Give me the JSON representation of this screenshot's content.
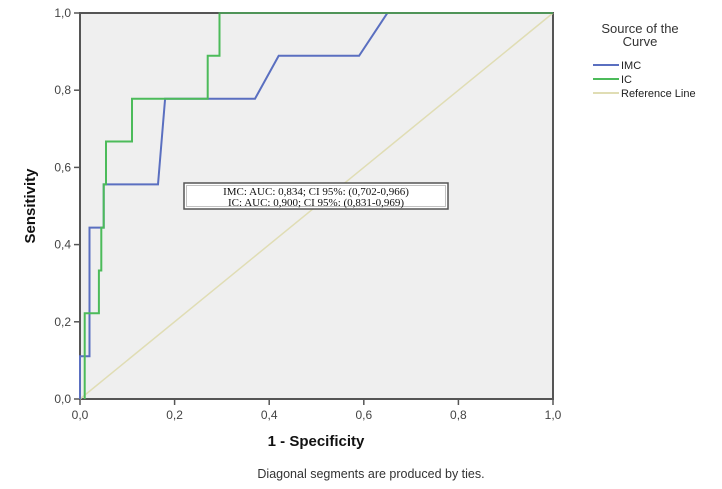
{
  "chart_data": {
    "type": "line",
    "title": "",
    "xlabel": "1 - Specificity",
    "ylabel": "Sensitivity",
    "xlim": [
      0.0,
      1.0
    ],
    "ylim": [
      0.0,
      1.0
    ],
    "x_ticks": [
      "0,0",
      "0,2",
      "0,4",
      "0,6",
      "0,8",
      "1,0"
    ],
    "y_ticks": [
      "0,0",
      "0,2",
      "0,4",
      "0,6",
      "0,8",
      "1,0"
    ],
    "grid": false,
    "legend": {
      "title_line1": "Source of the",
      "title_line2": "Curve",
      "position": "right",
      "entries": [
        "IMC",
        "IC",
        "Reference Line"
      ]
    },
    "series": [
      {
        "name": "IMC",
        "color": "#5a6fc0",
        "x": [
          0,
          0,
          0.02,
          0.02,
          0.05,
          0.05,
          0.165,
          0.18,
          0.37,
          0.42,
          0.59,
          0.65,
          1.0
        ],
        "y": [
          0,
          0.111,
          0.111,
          0.444,
          0.444,
          0.556,
          0.556,
          0.778,
          0.778,
          0.889,
          0.889,
          1.0,
          1.0
        ]
      },
      {
        "name": "IC",
        "color": "#4cbb5a",
        "x": [
          0.01,
          0.01,
          0.04,
          0.04,
          0.045,
          0.045,
          0.05,
          0.05,
          0.055,
          0.055,
          0.11,
          0.11,
          0.27,
          0.27,
          0.295,
          0.295,
          1.0
        ],
        "y": [
          0,
          0.222,
          0.222,
          0.333,
          0.333,
          0.444,
          0.444,
          0.556,
          0.556,
          0.667,
          0.667,
          0.778,
          0.778,
          0.889,
          0.889,
          1.0,
          1.0
        ]
      },
      {
        "name": "Reference Line",
        "color": "#e0ddb4",
        "x": [
          0,
          1
        ],
        "y": [
          0,
          1
        ]
      }
    ],
    "annotations": [
      "IMC: AUC: 0,834; CI 95%: (0,702-0,966)",
      "IC: AUC: 0,900; CI 95%: (0,831-0,969)"
    ],
    "auc": {
      "IMC": {
        "auc": 0.834,
        "ci_low": 0.702,
        "ci_high": 0.966
      },
      "IC": {
        "auc": 0.9,
        "ci_low": 0.831,
        "ci_high": 0.969
      }
    },
    "footnote": "Diagonal segments are produced by ties."
  },
  "colors": {
    "plot_background": "#efefef",
    "frame": "#555555"
  }
}
